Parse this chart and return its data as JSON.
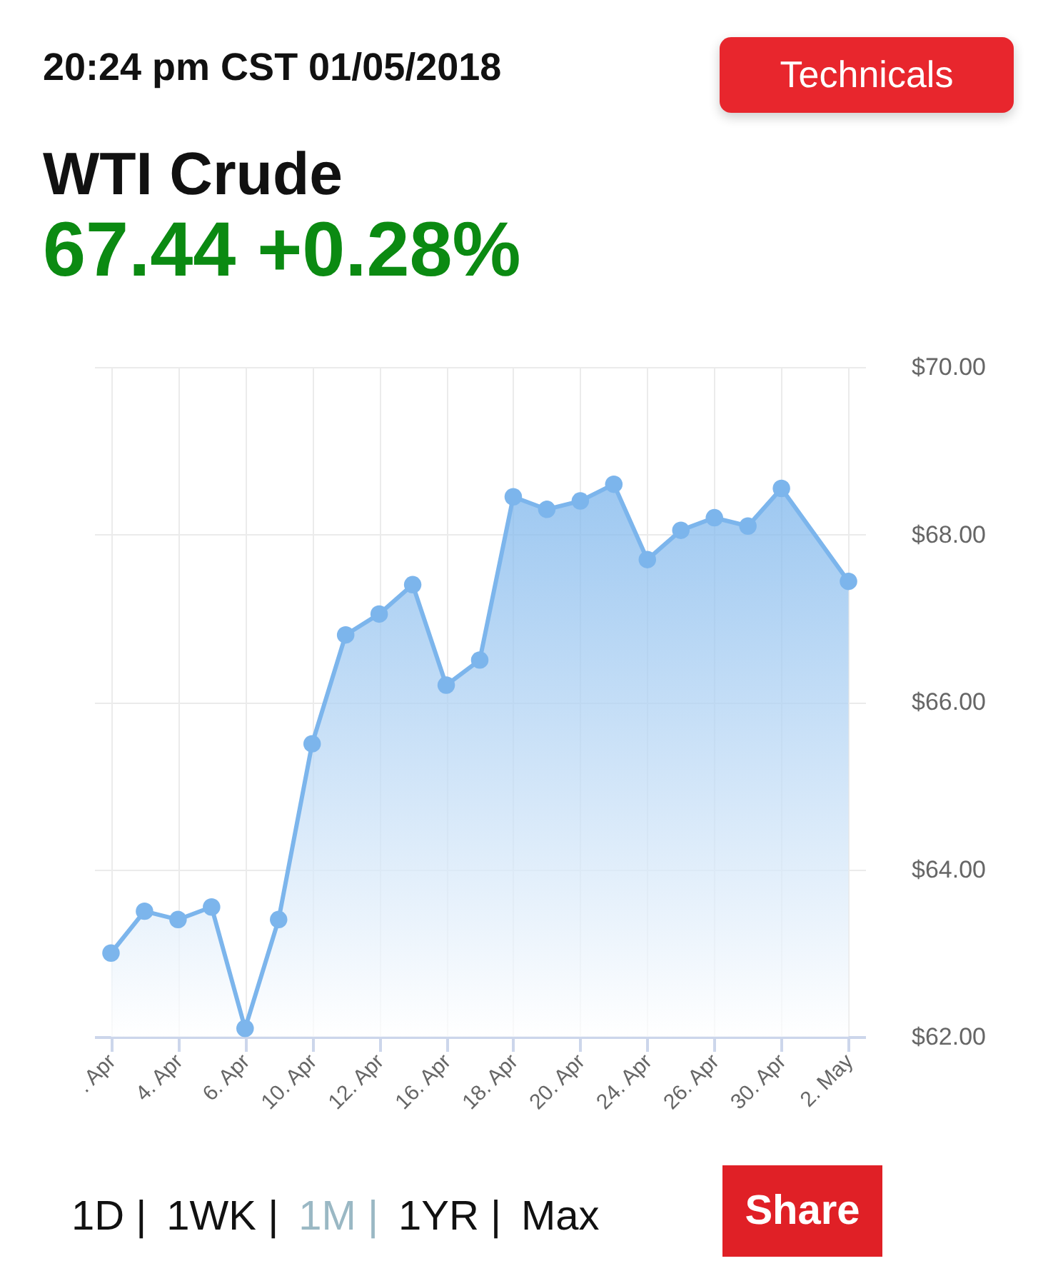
{
  "chart_data": {
    "type": "area",
    "title": "WTI Crude",
    "subtitle": "67.44 +0.28%",
    "annotations": [
      "20:24 pm CST 01/05/2018",
      "Technicals",
      "1D |",
      "1WK |",
      "1M |",
      "1YR |",
      "Max",
      "Share"
    ],
    "categories": [
      ". Apr",
      null,
      "4. Apr",
      null,
      "6. Apr",
      null,
      "10. Apr",
      null,
      "12. Apr",
      null,
      "16. Apr",
      null,
      "18. Apr",
      null,
      "20. Apr",
      null,
      "24. Apr",
      null,
      "26. Apr",
      null,
      "30. Apr",
      null,
      "2. May"
    ],
    "series": [
      {
        "color": "#7cb5ec",
        "values": [
          63.0,
          63.5,
          63.4,
          63.55,
          62.1,
          63.4,
          65.5,
          66.8,
          67.05,
          67.4,
          66.2,
          66.5,
          68.45,
          68.3,
          68.4,
          68.6,
          67.7,
          68.05,
          68.2,
          68.1,
          68.55,
          null,
          67.44
        ]
      }
    ],
    "ylim": [
      62,
      70
    ],
    "yticks": [
      {
        "value": 62,
        "label": "$62.00"
      },
      {
        "value": 64,
        "label": "$64.00"
      },
      {
        "value": 66,
        "label": "$66.00"
      },
      {
        "value": 68,
        "label": "$68.00"
      },
      {
        "value": 70,
        "label": "$70.00"
      }
    ],
    "grid": true,
    "marker": "circle"
  }
}
